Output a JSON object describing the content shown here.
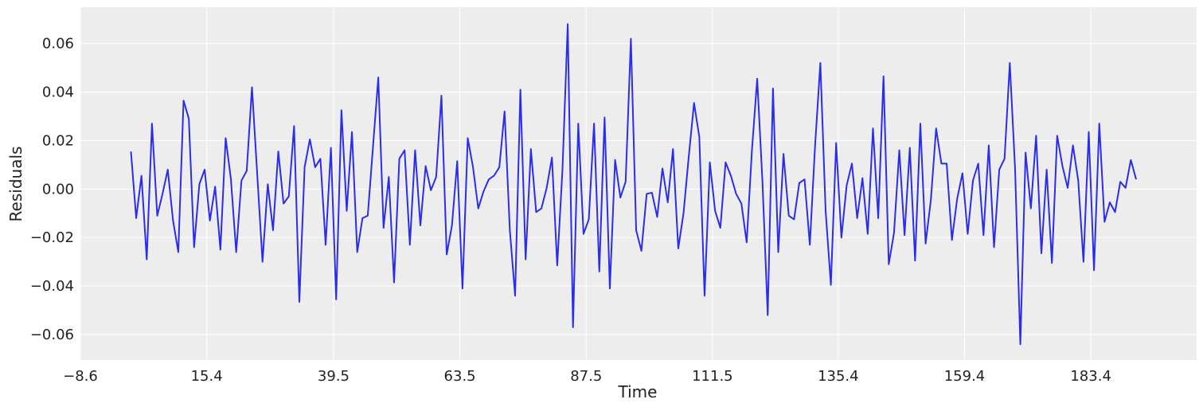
{
  "chart_data": {
    "type": "line",
    "title": "",
    "xlabel": "Time",
    "ylabel": "Residuals",
    "xlim": [
      -8.6,
      203.5
    ],
    "ylim": [
      -0.0705,
      0.075
    ],
    "grid": true,
    "background": "#ededed",
    "line_color": "#2a2eec",
    "x_ticks": [
      -8.6,
      15.4,
      39.5,
      63.5,
      87.5,
      111.5,
      135.4,
      159.4,
      183.4
    ],
    "x_tick_labels": [
      "−8.6",
      "15.4",
      "39.5",
      "63.5",
      "87.5",
      "111.5",
      "135.4",
      "159.4",
      "183.4"
    ],
    "y_ticks": [
      0.06,
      0.04,
      0.02,
      0.0,
      -0.02,
      -0.04,
      -0.06
    ],
    "y_tick_labels": [
      "0.06",
      "0.04",
      "0.02",
      "0.00",
      "−0.02",
      "−0.04",
      "−0.06"
    ],
    "series": [
      {
        "x_start": 1,
        "x_step": 1,
        "values": [
          0.0155,
          -0.012,
          0.0055,
          -0.029,
          0.027,
          -0.011,
          -0.002,
          0.008,
          -0.013,
          -0.026,
          0.0365,
          0.029,
          -0.024,
          0.002,
          0.008,
          -0.013,
          0.001,
          -0.025,
          0.021,
          0.004,
          -0.026,
          0.0035,
          0.0075,
          0.042,
          0.006,
          -0.03,
          0.002,
          -0.017,
          0.0155,
          -0.006,
          -0.003,
          0.026,
          -0.0465,
          0.009,
          0.0205,
          0.009,
          0.0125,
          -0.023,
          0.017,
          -0.0455,
          0.0325,
          -0.009,
          0.0235,
          -0.026,
          -0.012,
          -0.011,
          0.0175,
          0.046,
          -0.016,
          0.005,
          -0.0385,
          0.0125,
          0.016,
          -0.023,
          0.016,
          -0.015,
          0.0095,
          -0.0005,
          0.005,
          0.0385,
          -0.027,
          -0.015,
          0.0115,
          -0.041,
          0.021,
          0.009,
          -0.008,
          -0.001,
          0.004,
          0.0055,
          0.009,
          0.032,
          -0.017,
          -0.044,
          0.041,
          -0.029,
          0.0165,
          -0.0095,
          -0.008,
          0.0005,
          0.013,
          -0.0315,
          0.008,
          0.068,
          -0.057,
          0.027,
          -0.0185,
          -0.0125,
          0.027,
          -0.034,
          0.0295,
          -0.041,
          0.012,
          -0.0035,
          0.003,
          0.062,
          -0.017,
          -0.0255,
          -0.002,
          -0.0015,
          -0.0115,
          0.0085,
          -0.0055,
          0.0165,
          -0.0245,
          -0.01,
          0.0135,
          0.0355,
          0.0215,
          -0.044,
          0.011,
          -0.009,
          -0.016,
          0.011,
          0.0055,
          -0.002,
          -0.006,
          -0.022,
          0.016,
          0.0455,
          0.003,
          -0.052,
          0.0415,
          -0.026,
          0.0145,
          -0.011,
          -0.0125,
          0.0025,
          0.004,
          -0.023,
          0.018,
          0.052,
          -0.009,
          -0.0395,
          0.019,
          -0.02,
          0.0015,
          0.0105,
          -0.012,
          0.0045,
          -0.0185,
          0.025,
          -0.012,
          0.0465,
          -0.031,
          -0.018,
          0.016,
          -0.019,
          0.017,
          -0.0295,
          0.027,
          -0.0225,
          -0.0045,
          0.025,
          0.0105,
          0.0105,
          -0.021,
          -0.004,
          0.0065,
          -0.0185,
          0.0035,
          0.0105,
          -0.019,
          0.018,
          -0.024,
          0.008,
          0.0125,
          0.052,
          0.0085,
          -0.064,
          0.015,
          -0.008,
          0.022,
          -0.0265,
          0.008,
          -0.0305,
          0.022,
          0.0095,
          0.0005,
          0.018,
          0.0035,
          -0.03,
          0.0235,
          -0.0335,
          0.027,
          -0.0135,
          -0.0055,
          -0.0095,
          0.003,
          0.0005,
          0.012,
          0.004
        ]
      }
    ]
  }
}
